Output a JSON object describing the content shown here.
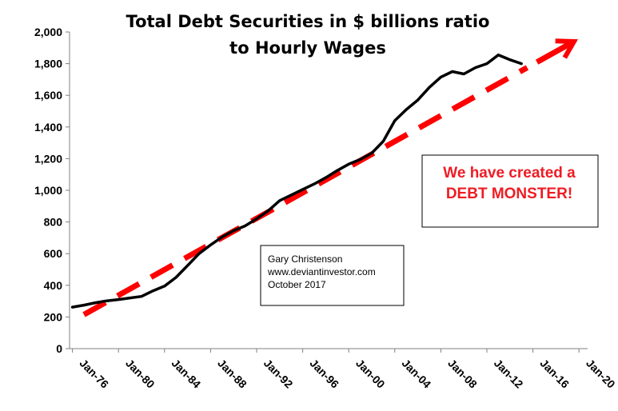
{
  "chart_data": {
    "type": "line",
    "title_lines": [
      "Total Debt Securities in $ billions ratio",
      "to  Hourly Wages"
    ],
    "xlabel": "",
    "ylabel": "",
    "ylim": [
      0,
      2000
    ],
    "yticks": [
      0,
      200,
      400,
      600,
      800,
      1000,
      1200,
      1400,
      1600,
      1800,
      2000
    ],
    "ytick_labels": [
      "0",
      "200",
      "400",
      "600",
      "800",
      "1,000",
      "1,200",
      "1,400",
      "1,600",
      "1,800",
      "2,000"
    ],
    "xlim": [
      1975.75,
      2020.75
    ],
    "xticks": [
      1976,
      1980,
      1984,
      1988,
      1992,
      1996,
      2000,
      2004,
      2008,
      2012,
      2016,
      2020
    ],
    "xtick_labels": [
      "Jan-76",
      "Jan-80",
      "Jan-84",
      "Jan-88",
      "Jan-92",
      "Jan-96",
      "Jan-00",
      "Jan-04",
      "Jan-08",
      "Jan-12",
      "Jan-16",
      "Jan-20"
    ],
    "grid": false,
    "legend": "none",
    "series": [
      {
        "color": "#000000",
        "style": "solid",
        "x": [
          1976,
          1977,
          1978,
          1979,
          1980,
          1981,
          1982,
          1983,
          1984,
          1985,
          1986,
          1987,
          1988,
          1989,
          1990,
          1991,
          1992,
          1993,
          1994,
          1995,
          1996,
          1997,
          1998,
          1999,
          2000,
          2001,
          2002,
          2003,
          2004,
          2005,
          2006,
          2007,
          2008,
          2009,
          2010,
          2011,
          2012,
          2013,
          2014,
          2015
        ],
        "y": [
          262,
          275,
          290,
          302,
          310,
          320,
          330,
          365,
          395,
          450,
          525,
          600,
          655,
          705,
          745,
          775,
          820,
          870,
          935,
          970,
          1005,
          1040,
          1080,
          1125,
          1165,
          1195,
          1235,
          1310,
          1440,
          1510,
          1570,
          1650,
          1715,
          1750,
          1735,
          1775,
          1800,
          1855,
          1825,
          1800
        ]
      },
      {
        "color": "#ff0000",
        "style": "dashed",
        "x": [
          1977,
          2015.5
        ],
        "y": [
          215,
          1775
        ]
      }
    ],
    "annotations": {
      "credit": [
        "Gary Christenson",
        "www.deviantinvestor.com",
        "October 2017"
      ],
      "callout": [
        "We have created a",
        "DEBT MONSTER!"
      ]
    }
  },
  "colors": {
    "trend": "#ff0000",
    "line": "#000000",
    "axis": "#808080",
    "callout_text": "#ee1c24"
  }
}
